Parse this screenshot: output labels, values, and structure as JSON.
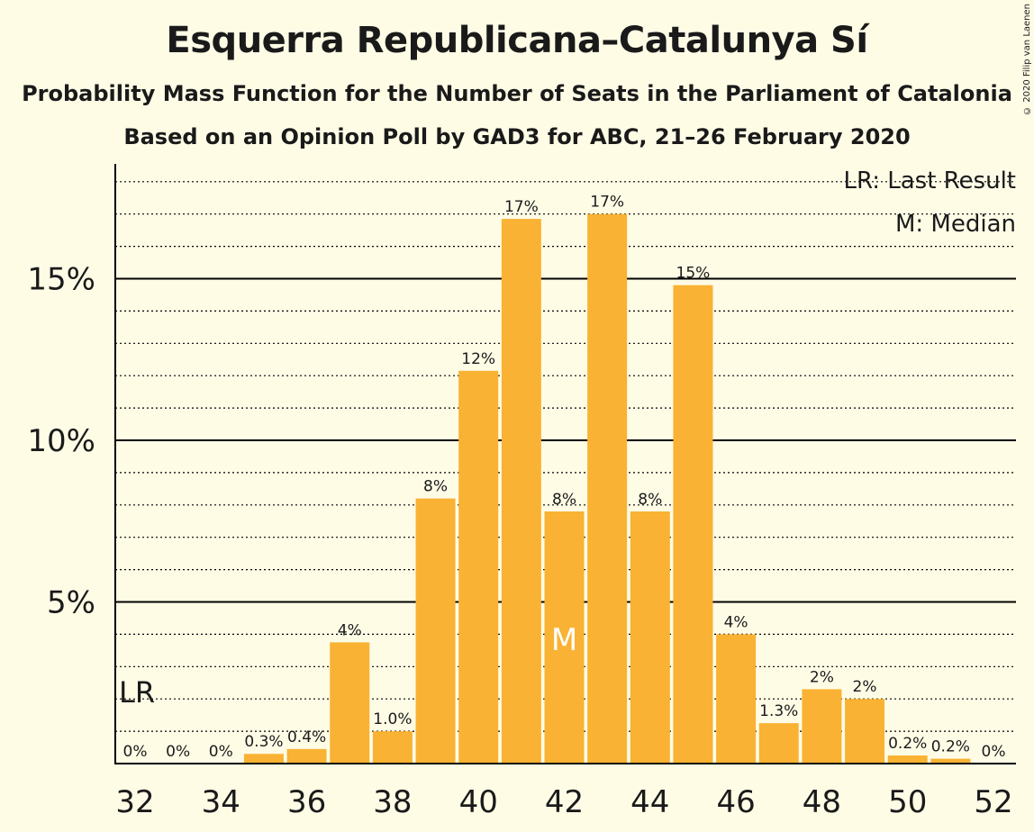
{
  "title": "Esquerra Republicana–Catalunya Sí",
  "subtitle1": "Probability Mass Function for the Number of Seats in the Parliament of Catalonia",
  "subtitle2": "Based on an Opinion Poll by GAD3 for ABC, 21–26 February 2020",
  "copyright": "© 2020 Filip van Laenen",
  "legend": {
    "lr": "LR: Last Result",
    "m": "M: Median"
  },
  "colors": {
    "bar": "#f9b233",
    "background": "#fffce6",
    "text": "#1a1a1a"
  },
  "chart_data": {
    "type": "bar",
    "x": [
      32,
      33,
      34,
      35,
      36,
      37,
      38,
      39,
      40,
      41,
      42,
      43,
      44,
      45,
      46,
      47,
      48,
      49,
      50,
      51,
      52
    ],
    "values": [
      0,
      0,
      0,
      0.3,
      0.45,
      3.75,
      1.0,
      8.2,
      12.15,
      16.85,
      7.8,
      17.0,
      7.8,
      14.8,
      4.0,
      1.25,
      2.3,
      2.0,
      0.25,
      0.15,
      0
    ],
    "labels": [
      "0%",
      "0%",
      "0%",
      "0.3%",
      "0.4%",
      "4%",
      "1.0%",
      "8%",
      "12%",
      "17%",
      "8%",
      "17%",
      "8%",
      "15%",
      "4%",
      "1.3%",
      "2%",
      "2%",
      "0.2%",
      "0.2%",
      "0%"
    ],
    "xticks": [
      32,
      34,
      36,
      38,
      40,
      42,
      44,
      46,
      48,
      50,
      52
    ],
    "yticks": [
      {
        "value": 5,
        "label": "5%"
      },
      {
        "value": 10,
        "label": "10%"
      },
      {
        "value": 15,
        "label": "15%"
      }
    ],
    "ylim": [
      0,
      18.5
    ],
    "last_result": 32,
    "last_result_label": "LR",
    "median": 42,
    "median_label": "M",
    "legend_position": "top-right"
  }
}
